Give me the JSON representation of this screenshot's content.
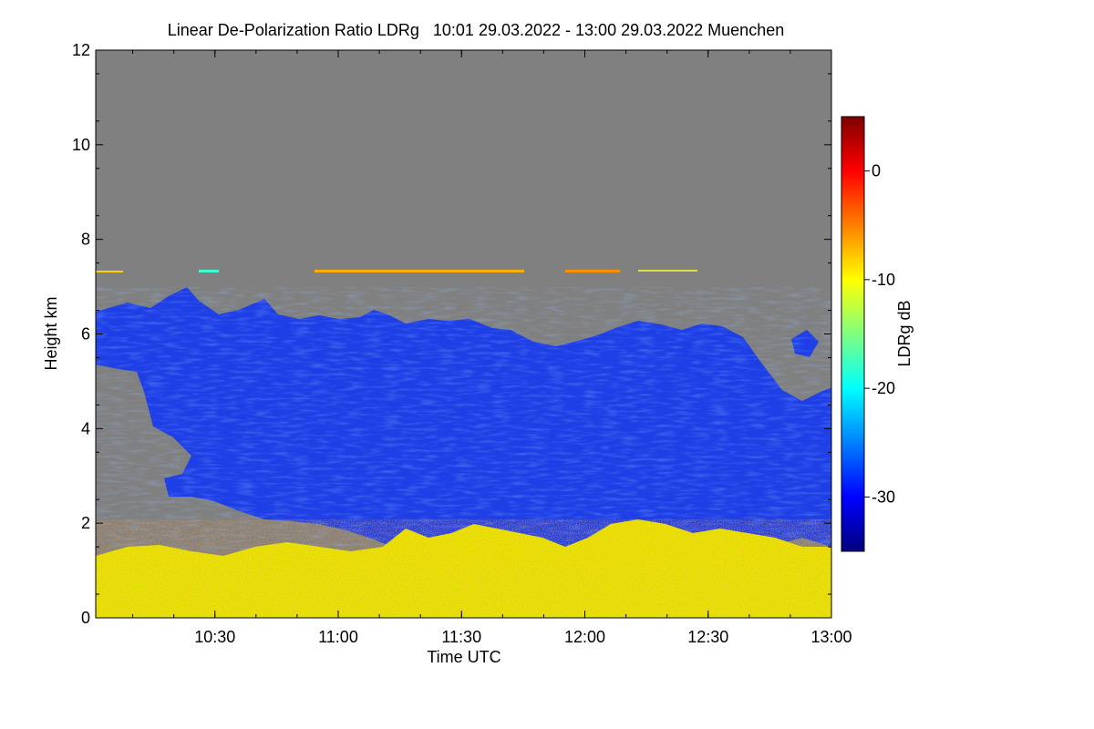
{
  "chart_data": {
    "type": "heatmap",
    "title": "Linear De-Polarization Ratio LDRg   10:01 29.03.2022 - 13:00 29.03.2022 Muenchen",
    "xlabel": "Time UTC",
    "ylabel": "Height km",
    "x_range_minutes": [
      601,
      780
    ],
    "x_ticks": [
      {
        "label": "10:30",
        "value": 630
      },
      {
        "label": "11:00",
        "value": 660
      },
      {
        "label": "11:30",
        "value": 690
      },
      {
        "label": "12:00",
        "value": 720
      },
      {
        "label": "12:30",
        "value": 750
      },
      {
        "label": "13:00",
        "value": 780
      }
    ],
    "ylim": [
      0,
      12
    ],
    "y_ticks": [
      0,
      2,
      4,
      6,
      8,
      10,
      12
    ],
    "colorbar": {
      "label": "LDRg dB",
      "range": [
        -35,
        5
      ],
      "ticks": [
        0,
        -10,
        -20,
        -30
      ],
      "colormap": [
        "#00007f",
        "#0000ff",
        "#0080ff",
        "#00ffff",
        "#80ff80",
        "#ffff00",
        "#ff8000",
        "#ff0000",
        "#7f0000"
      ]
    },
    "background_color": "#808080",
    "regions": [
      {
        "name": "cirrus-cloud",
        "ldr_db": -30,
        "color": "#1f3fe6"
      },
      {
        "name": "boundary-layer-aerosol",
        "ldr_db": -10,
        "color": "#e6e600"
      },
      {
        "name": "elevated-thin-layer",
        "ldr_db": -8,
        "color": "#ffb000"
      }
    ]
  }
}
